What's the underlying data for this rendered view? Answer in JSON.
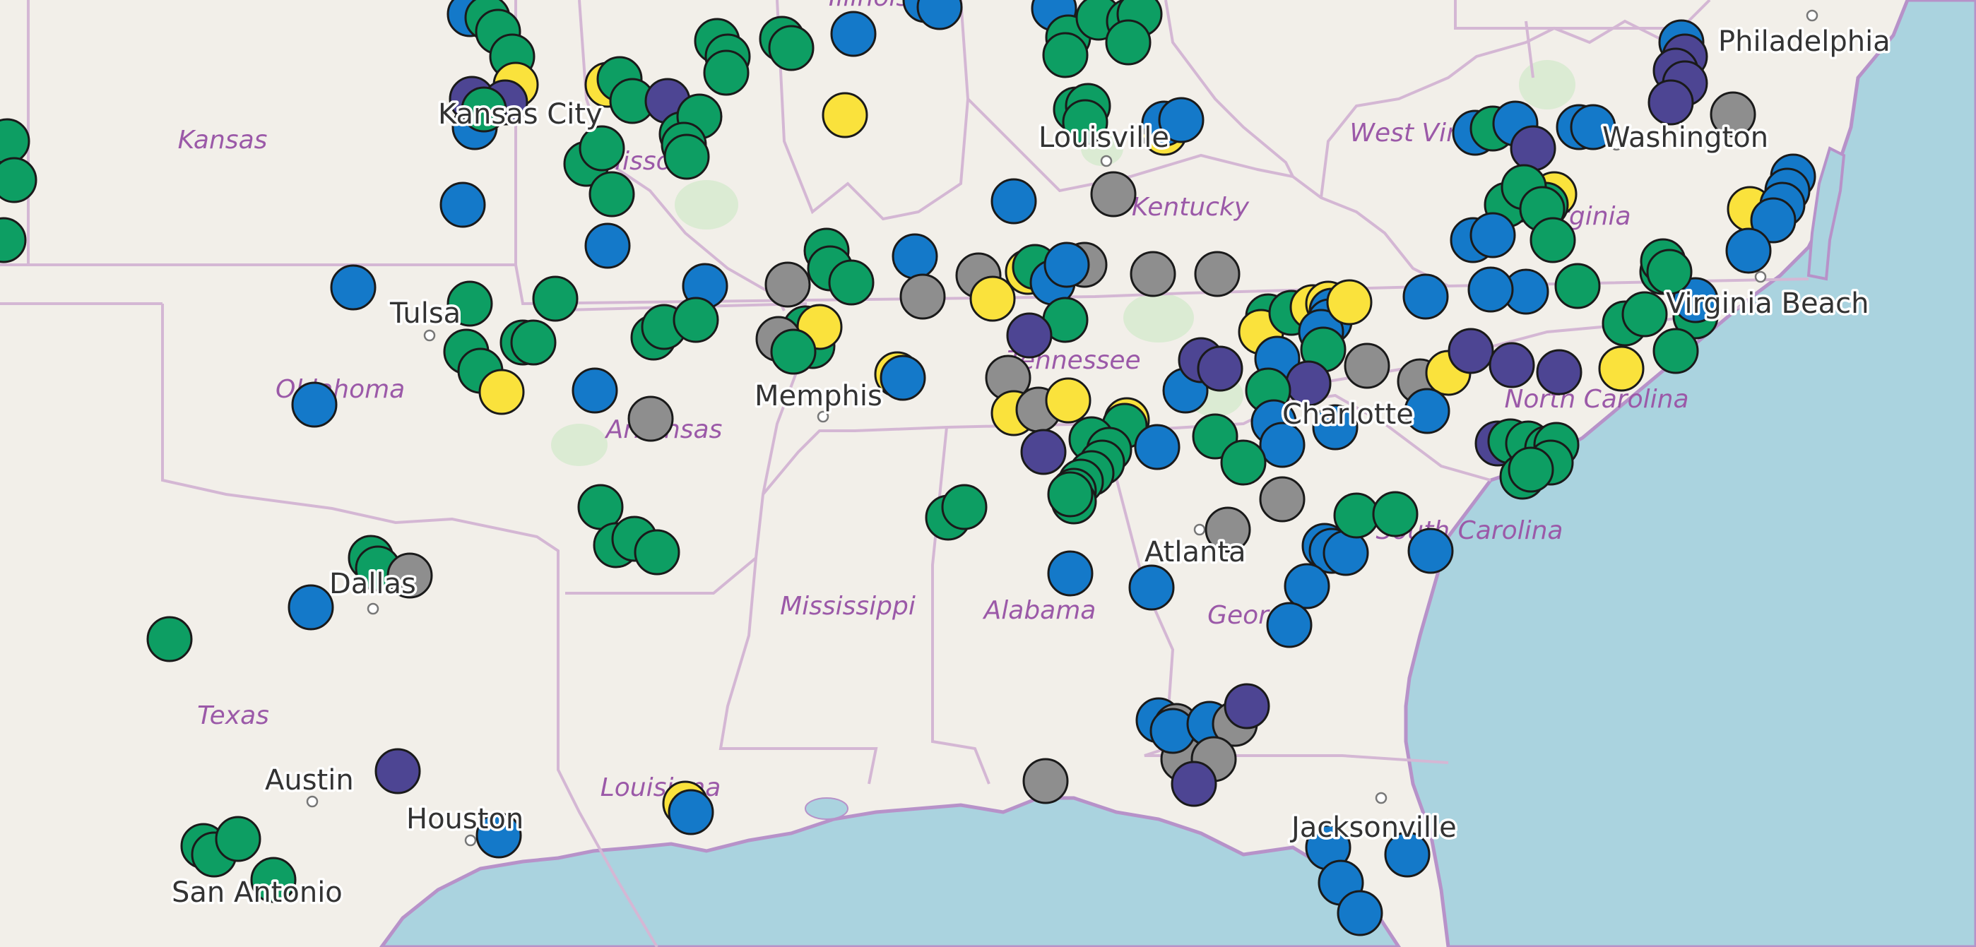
{
  "map": {
    "colors": {
      "land": "#f2efe9",
      "water": "#aad3df",
      "coast": "#b792c9",
      "state_border": "#d4b7d4",
      "park": "#d8ead0"
    },
    "states": [
      {
        "id": "kansas",
        "label": "Kansas"
      },
      {
        "id": "missouri",
        "label": "Misso"
      },
      {
        "id": "oklahoma",
        "label": "Oklahoma"
      },
      {
        "id": "arkansas",
        "label": "Arkansas"
      },
      {
        "id": "texas",
        "label": "Texas"
      },
      {
        "id": "louisiana",
        "label": "Louisiana"
      },
      {
        "id": "mississippi",
        "label": "Mississippi"
      },
      {
        "id": "alabama",
        "label": "Alabama"
      },
      {
        "id": "tennessee",
        "label": "Tennessee"
      },
      {
        "id": "kentucky",
        "label": "Kentucky"
      },
      {
        "id": "georgia",
        "label": "Georgia"
      },
      {
        "id": "south-carolina",
        "label": "South Carolina"
      },
      {
        "id": "north-carolina",
        "label": "North Carolina"
      },
      {
        "id": "virginia",
        "label": "Virginia"
      },
      {
        "id": "west-virginia",
        "label": "West Virginia"
      },
      {
        "id": "illinois",
        "label": "Illinois"
      }
    ],
    "cities": [
      {
        "id": "kansas-city",
        "label": "Kansas City"
      },
      {
        "id": "tulsa",
        "label": "Tulsa"
      },
      {
        "id": "memphis",
        "label": "Memphis"
      },
      {
        "id": "louisville",
        "label": "Louisville"
      },
      {
        "id": "dallas",
        "label": "Dallas"
      },
      {
        "id": "austin",
        "label": "Austin"
      },
      {
        "id": "houston",
        "label": "Houston"
      },
      {
        "id": "san-antonio",
        "label": "San Antonio"
      },
      {
        "id": "atlanta",
        "label": "Atlanta"
      },
      {
        "id": "charlotte",
        "label": "Charlotte"
      },
      {
        "id": "jacksonville",
        "label": "Jacksonville"
      },
      {
        "id": "washington",
        "label": "Washington"
      },
      {
        "id": "philadelphia",
        "label": "Philadelphia"
      },
      {
        "id": "virginia-beach",
        "label": "Virginia Beach"
      }
    ],
    "marker_colors": {
      "green": "#0d9e63",
      "blue": "#1479c9",
      "yellow": "#fae23c",
      "gray": "#8e8e8e",
      "purple": "#4d4593"
    }
  }
}
